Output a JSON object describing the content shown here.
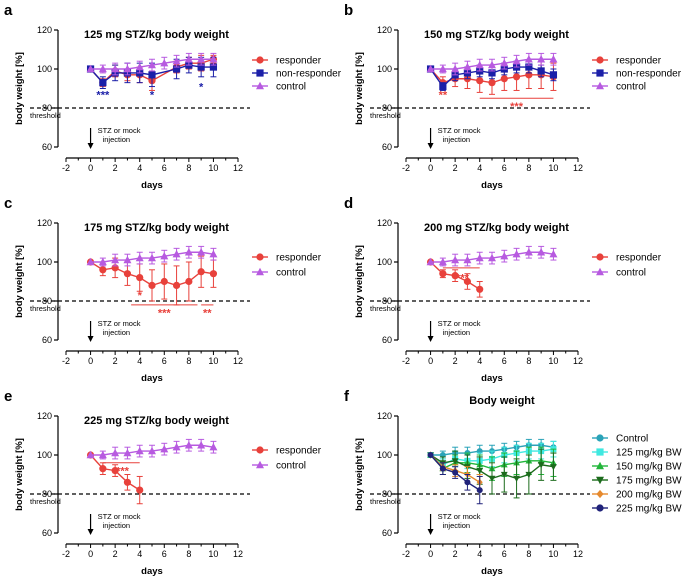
{
  "colors": {
    "red": "#e8413b",
    "blue": "#1b1fa8",
    "purple": "#b75ae0",
    "cyan": "#2aa3b8",
    "lightcyan": "#40e8e0",
    "green": "#22b53a",
    "darkgreen": "#1c6b1c",
    "orange": "#e68a2e",
    "navy": "#20237a"
  },
  "common": {
    "threshold_label": "threshold",
    "injection_line1": "STZ or mock",
    "injection_line2": "injection"
  },
  "chart_data": [
    {
      "letter": "a",
      "type": "line",
      "title": "125 mg STZ/kg body weight",
      "xlabel": "days",
      "ylabel": "body weight [%]",
      "xlim": [
        -2,
        12
      ],
      "ylim": [
        60,
        120
      ],
      "xticks": [
        -2,
        0,
        2,
        4,
        6,
        8,
        10,
        12
      ],
      "yticks": [
        60,
        80,
        100,
        120
      ],
      "threshold": 80,
      "series": [
        {
          "name": "responder",
          "color": "red",
          "marker": "circle",
          "x": [
            0,
            1,
            2,
            3,
            4,
            5,
            7,
            8,
            9,
            10
          ],
          "y": [
            100,
            93,
            99,
            97,
            97,
            94,
            101,
            103,
            103,
            105
          ],
          "err": [
            0,
            2,
            3,
            3,
            4,
            5,
            3,
            3,
            4,
            2
          ]
        },
        {
          "name": "non-responder",
          "color": "blue",
          "marker": "square",
          "x": [
            0,
            1,
            2,
            3,
            4,
            5,
            7,
            8,
            9,
            10
          ],
          "y": [
            100,
            93,
            98,
            98,
            98,
            97,
            100,
            102,
            101,
            101
          ],
          "err": [
            0,
            3,
            4,
            5,
            5,
            6,
            5,
            4,
            5,
            5
          ]
        },
        {
          "name": "control",
          "color": "purple",
          "marker": "triangle",
          "x": [
            0,
            1,
            2,
            3,
            4,
            5,
            6,
            7,
            8,
            9,
            10
          ],
          "y": [
            100,
            100,
            100,
            100,
            101,
            102,
            103,
            104,
            105,
            105,
            105
          ],
          "err": [
            0,
            2,
            3,
            3,
            3,
            3,
            3,
            3,
            3,
            3,
            3
          ]
        }
      ],
      "sig_marks": [
        {
          "text": "***",
          "x": 1,
          "y": 87,
          "color": "blue"
        },
        {
          "text": "*",
          "x": 5,
          "y": 87,
          "color": "blue"
        },
        {
          "text": "*",
          "x": 9,
          "y": 91,
          "color": "blue"
        }
      ],
      "sig_lines": []
    },
    {
      "letter": "b",
      "type": "line",
      "title": "150 mg STZ/kg body weight",
      "xlabel": "days",
      "ylabel": "body weight [%]",
      "xlim": [
        -2,
        12
      ],
      "ylim": [
        60,
        120
      ],
      "xticks": [
        -2,
        0,
        2,
        4,
        6,
        8,
        10,
        12
      ],
      "yticks": [
        60,
        80,
        100,
        120
      ],
      "threshold": 80,
      "series": [
        {
          "name": "responder",
          "color": "red",
          "marker": "circle",
          "x": [
            0,
            1,
            2,
            3,
            4,
            5,
            6,
            7,
            8,
            9,
            10
          ],
          "y": [
            100,
            93,
            95,
            95,
            94,
            93,
            95,
            96,
            97,
            97,
            96
          ],
          "err": [
            0,
            3,
            4,
            5,
            6,
            6,
            6,
            7,
            7,
            7,
            7
          ]
        },
        {
          "name": "non-responder",
          "color": "blue",
          "marker": "square",
          "x": [
            0,
            1,
            2,
            3,
            4,
            5,
            6,
            7,
            8,
            9,
            10
          ],
          "y": [
            100,
            91,
            97,
            98,
            99,
            98,
            100,
            101,
            101,
            99,
            97
          ],
          "err": [
            0,
            2,
            3,
            3,
            3,
            3,
            3,
            3,
            3,
            3,
            3
          ]
        },
        {
          "name": "control",
          "color": "purple",
          "marker": "triangle",
          "x": [
            0,
            1,
            2,
            3,
            4,
            5,
            6,
            7,
            8,
            9,
            10
          ],
          "y": [
            100,
            100,
            100,
            101,
            102,
            102,
            103,
            104,
            105,
            105,
            105
          ],
          "err": [
            0,
            2,
            3,
            3,
            3,
            3,
            3,
            3,
            3,
            3,
            3
          ]
        }
      ],
      "sig_marks": [
        {
          "text": "**",
          "x": 1,
          "y": 87,
          "color": "red"
        },
        {
          "text": "***",
          "x": 7,
          "y": 81,
          "color": "red"
        }
      ],
      "sig_lines": [
        {
          "x1": 4,
          "x2": 10,
          "y": 85,
          "color": "red"
        }
      ]
    },
    {
      "letter": "c",
      "type": "line",
      "title": "175 mg STZ/kg body weight",
      "xlabel": "days",
      "ylabel": "body weight [%]",
      "xlim": [
        -2,
        12
      ],
      "ylim": [
        60,
        120
      ],
      "xticks": [
        -2,
        0,
        2,
        4,
        6,
        8,
        10,
        12
      ],
      "yticks": [
        60,
        80,
        100,
        120
      ],
      "threshold": 80,
      "series": [
        {
          "name": "responder",
          "color": "red",
          "marker": "circle",
          "x": [
            0,
            1,
            2,
            3,
            4,
            5,
            6,
            7,
            8,
            9,
            10
          ],
          "y": [
            100,
            96,
            97,
            94,
            92,
            88,
            90,
            88,
            90,
            95,
            94
          ],
          "err": [
            0,
            3,
            5,
            6,
            7,
            8,
            9,
            10,
            10,
            8,
            7
          ]
        },
        {
          "name": "control",
          "color": "purple",
          "marker": "triangle",
          "x": [
            0,
            1,
            2,
            3,
            4,
            5,
            6,
            7,
            8,
            9,
            10
          ],
          "y": [
            100,
            100,
            101,
            101,
            102,
            102,
            103,
            104,
            105,
            105,
            104
          ],
          "err": [
            0,
            2,
            3,
            3,
            3,
            3,
            3,
            3,
            3,
            3,
            3
          ]
        }
      ],
      "sig_marks": [
        {
          "text": "*",
          "x": 4,
          "y": 83,
          "color": "red"
        },
        {
          "text": "***",
          "x": 6,
          "y": 74,
          "color": "red"
        },
        {
          "text": "**",
          "x": 9.5,
          "y": 74,
          "color": "red"
        }
      ],
      "sig_lines": [
        {
          "x1": 3.3,
          "x2": 8.7,
          "y": 78,
          "color": "red"
        },
        {
          "x1": 9,
          "x2": 10,
          "y": 78,
          "color": "red"
        }
      ]
    },
    {
      "letter": "d",
      "type": "line",
      "title": "200 mg STZ/kg body weight",
      "xlabel": "days",
      "ylabel": "body weight [%]",
      "xlim": [
        -2,
        12
      ],
      "ylim": [
        60,
        120
      ],
      "xticks": [
        -2,
        0,
        2,
        4,
        6,
        8,
        10,
        12
      ],
      "yticks": [
        60,
        80,
        100,
        120
      ],
      "threshold": 80,
      "series": [
        {
          "name": "responder",
          "color": "red",
          "marker": "circle",
          "x": [
            0,
            1,
            2,
            3,
            4
          ],
          "y": [
            100,
            94,
            93,
            90,
            86
          ],
          "err": [
            0,
            2,
            3,
            4,
            4
          ]
        },
        {
          "name": "control",
          "color": "purple",
          "marker": "triangle",
          "x": [
            0,
            1,
            2,
            3,
            4,
            5,
            6,
            7,
            8,
            9,
            10
          ],
          "y": [
            100,
            100,
            101,
            101,
            102,
            102,
            103,
            104,
            105,
            105,
            104
          ],
          "err": [
            0,
            2,
            3,
            3,
            3,
            3,
            3,
            3,
            3,
            3,
            3
          ]
        }
      ],
      "sig_marks": [
        {
          "text": "***",
          "x": 2.6,
          "y": 92,
          "color": "red"
        }
      ],
      "sig_lines": [
        {
          "x1": 1,
          "x2": 4,
          "y": 97,
          "color": "red"
        }
      ]
    },
    {
      "letter": "e",
      "type": "line",
      "title": "225 mg STZ/kg body weight",
      "xlabel": "days",
      "ylabel": "body weight [%]",
      "xlim": [
        -2,
        12
      ],
      "ylim": [
        60,
        120
      ],
      "xticks": [
        -2,
        0,
        2,
        4,
        6,
        8,
        10,
        12
      ],
      "yticks": [
        60,
        80,
        100,
        120
      ],
      "threshold": 80,
      "series": [
        {
          "name": "responder",
          "color": "red",
          "marker": "circle",
          "x": [
            0,
            1,
            2,
            3,
            4
          ],
          "y": [
            100,
            93,
            92,
            86,
            82
          ],
          "err": [
            0,
            3,
            3,
            4,
            7
          ]
        },
        {
          "name": "control",
          "color": "purple",
          "marker": "triangle",
          "x": [
            0,
            1,
            2,
            3,
            4,
            5,
            6,
            7,
            8,
            9,
            10
          ],
          "y": [
            100,
            100,
            101,
            101,
            102,
            102,
            103,
            104,
            105,
            105,
            104
          ],
          "err": [
            0,
            2,
            3,
            3,
            3,
            3,
            3,
            3,
            3,
            3,
            3
          ]
        }
      ],
      "sig_marks": [
        {
          "text": "***",
          "x": 2.6,
          "y": 92,
          "color": "red"
        }
      ],
      "sig_lines": [
        {
          "x1": 1,
          "x2": 4,
          "y": 96,
          "color": "red"
        }
      ]
    },
    {
      "letter": "f",
      "type": "line",
      "title": "Body weight",
      "xlabel": "days",
      "ylabel": "body weight [%]",
      "xlim": [
        -2,
        12
      ],
      "ylim": [
        60,
        120
      ],
      "xticks": [
        -2,
        0,
        2,
        4,
        6,
        8,
        10,
        12
      ],
      "yticks": [
        60,
        80,
        100,
        120
      ],
      "threshold": 80,
      "series": [
        {
          "name": "Control",
          "color": "cyan",
          "marker": "circle",
          "x": [
            0,
            1,
            2,
            3,
            4,
            5,
            6,
            7,
            8,
            9,
            10
          ],
          "y": [
            100,
            100,
            101,
            101,
            102,
            102,
            103,
            104,
            105,
            105,
            104
          ],
          "err": [
            0,
            2,
            3,
            3,
            3,
            3,
            3,
            3,
            3,
            3,
            3
          ]
        },
        {
          "name": "125 mg/kg BW",
          "color": "lightcyan",
          "marker": "square",
          "x": [
            0,
            1,
            2,
            3,
            4,
            5,
            6,
            7,
            8,
            9,
            10
          ],
          "y": [
            100,
            95,
            98,
            97,
            97,
            98,
            100,
            101,
            102,
            102,
            103
          ],
          "err": [
            0,
            3,
            4,
            4,
            4,
            4,
            4,
            4,
            4,
            4,
            4
          ]
        },
        {
          "name": "150 mg/kg BW",
          "color": "green",
          "marker": "triangle",
          "x": [
            0,
            1,
            2,
            3,
            4,
            5,
            6,
            7,
            8,
            9,
            10
          ],
          "y": [
            100,
            93,
            96,
            96,
            95,
            93,
            95,
            96,
            97,
            97,
            96
          ],
          "err": [
            0,
            3,
            4,
            5,
            5,
            6,
            6,
            6,
            7,
            7,
            7
          ]
        },
        {
          "name": "175 mg/kg BW",
          "color": "darkgreen",
          "marker": "triangle-down",
          "x": [
            0,
            1,
            2,
            3,
            4,
            5,
            6,
            7,
            8,
            9,
            10
          ],
          "y": [
            100,
            96,
            97,
            94,
            92,
            88,
            90,
            88,
            90,
            95,
            94
          ],
          "err": [
            0,
            3,
            5,
            6,
            7,
            8,
            9,
            10,
            10,
            8,
            7
          ]
        },
        {
          "name": "200 mg/kg BW",
          "color": "orange",
          "marker": "diamond",
          "x": [
            0,
            1,
            2,
            3,
            4
          ],
          "y": [
            100,
            94,
            92,
            90,
            86
          ],
          "err": [
            0,
            2,
            3,
            4,
            4
          ]
        },
        {
          "name": "225 mg/kg BW",
          "color": "navy",
          "marker": "circle",
          "x": [
            0,
            1,
            2,
            3,
            4
          ],
          "y": [
            100,
            93,
            91,
            86,
            82
          ],
          "err": [
            0,
            3,
            3,
            4,
            7
          ]
        }
      ],
      "sig_marks": [],
      "sig_lines": []
    }
  ]
}
